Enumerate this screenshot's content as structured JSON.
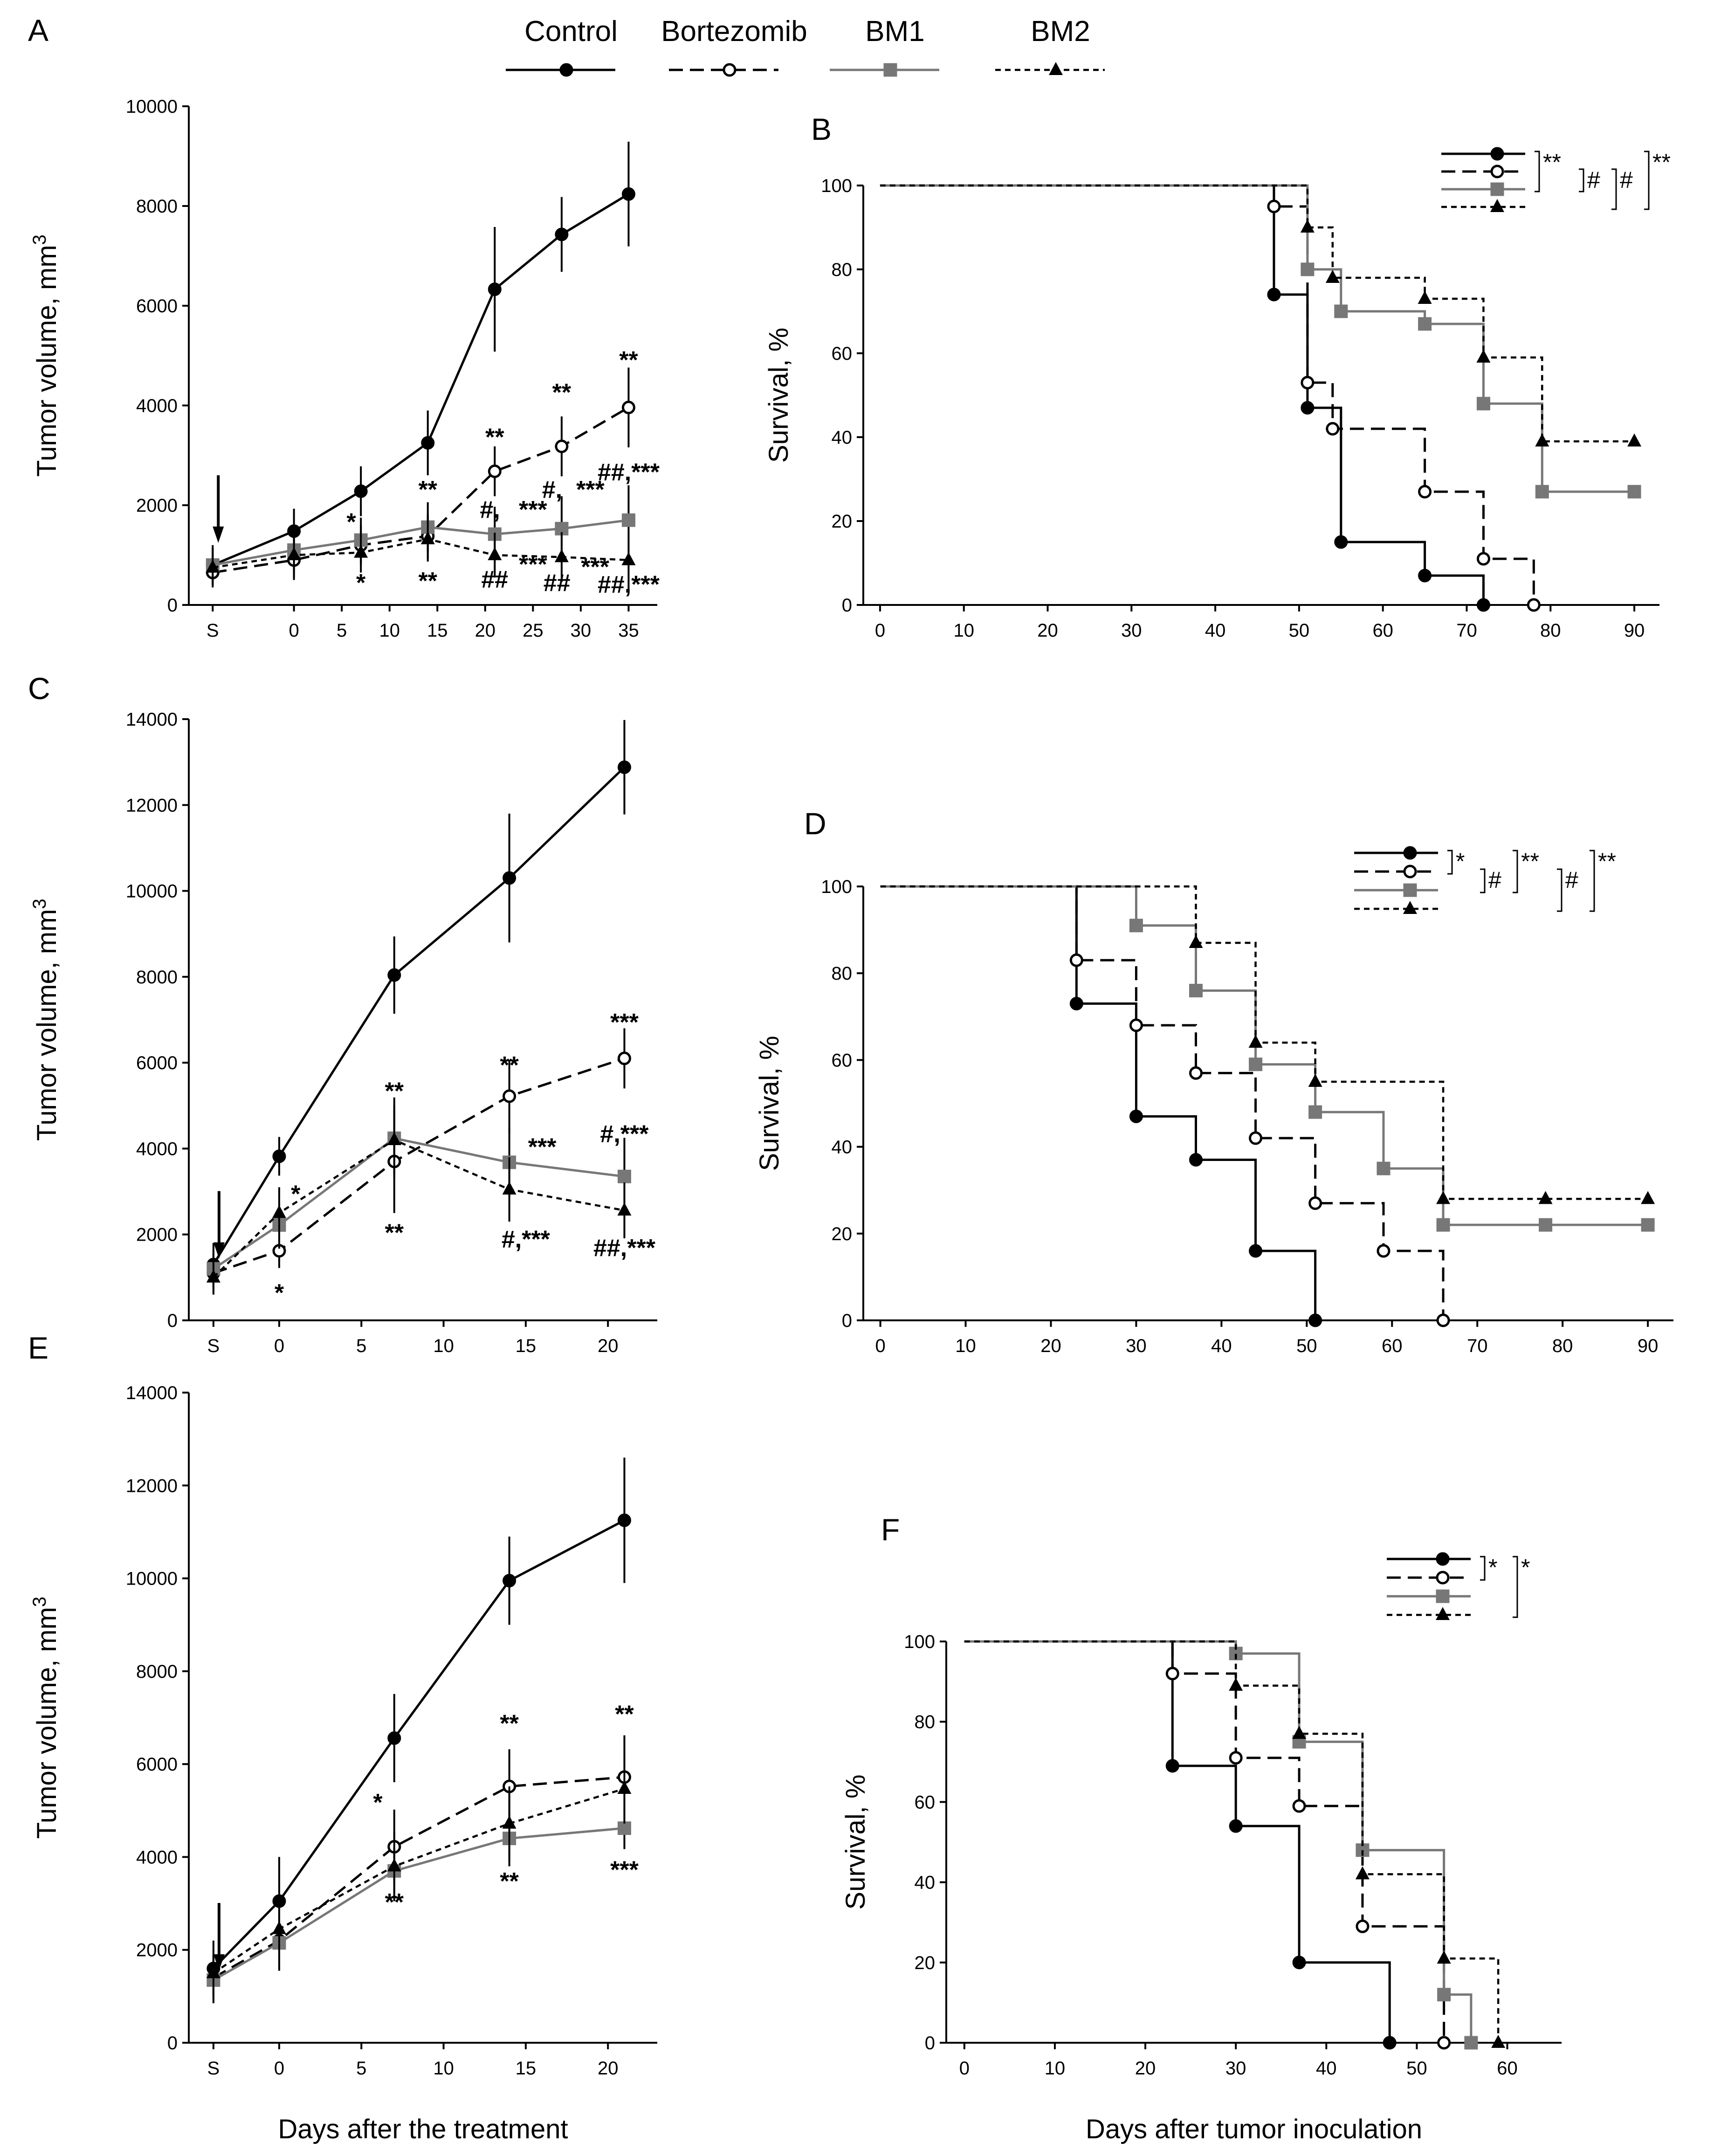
{
  "legend": {
    "items": [
      {
        "label": "Control",
        "style": "solid",
        "marker": "circle-filled",
        "color": "#000000"
      },
      {
        "label": "Bortezomib",
        "style": "longdash",
        "marker": "circle-open",
        "color": "#000000"
      },
      {
        "label": "BM1",
        "style": "solid",
        "marker": "square",
        "color": "#777777"
      },
      {
        "label": "BM2",
        "style": "shortdash",
        "marker": "triangle",
        "color": "#000000"
      }
    ]
  },
  "chart_data": [
    {
      "panel": "A",
      "type": "line",
      "ylabel": "Tumor volume, mm3",
      "xlabel": "",
      "ylim": [
        0,
        10000
      ],
      "yticks": [
        0,
        2000,
        4000,
        6000,
        8000,
        10000
      ],
      "xlim": [
        -11,
        38
      ],
      "xticks": [
        {
          "v": -8.5,
          "t": "S"
        },
        {
          "v": 0,
          "t": "0"
        },
        {
          "v": 5,
          "t": "5"
        },
        {
          "v": 10,
          "t": "10"
        },
        {
          "v": 15,
          "t": "15"
        },
        {
          "v": 20,
          "t": "20"
        },
        {
          "v": 25,
          "t": "25"
        },
        {
          "v": 30,
          "t": "30"
        },
        {
          "v": 35,
          "t": "35"
        }
      ],
      "treatment_arrow_x": -8.5,
      "series": [
        {
          "name": "Control",
          "x": [
            -8.5,
            0,
            7,
            14,
            21,
            28,
            35
          ],
          "values": [
            800,
            1480,
            2280,
            3250,
            6330,
            7430,
            8240
          ],
          "err": [
            400,
            450,
            500,
            650,
            1250,
            750,
            1050
          ]
        },
        {
          "name": "Bortezomib",
          "x": [
            -8.5,
            0,
            7,
            14,
            21,
            28,
            35
          ],
          "values": [
            650,
            900,
            1200,
            1380,
            2680,
            3180,
            3960
          ],
          "err": [
            300,
            400,
            400,
            450,
            500,
            600,
            800
          ]
        },
        {
          "name": "BM1",
          "x": [
            -8.5,
            0,
            7,
            14,
            21,
            28,
            35
          ],
          "values": [
            800,
            1100,
            1300,
            1560,
            1420,
            1530,
            1700
          ],
          "err": [
            350,
            450,
            450,
            500,
            550,
            650,
            700
          ]
        },
        {
          "name": "BM2",
          "x": [
            -8.5,
            0,
            7,
            14,
            21,
            28,
            35
          ],
          "values": [
            750,
            1000,
            1050,
            1320,
            1000,
            960,
            900
          ],
          "err": [
            350,
            450,
            400,
            450,
            450,
            500,
            600
          ]
        }
      ],
      "annotations": [
        {
          "x": 6,
          "y": 1500,
          "text": "*"
        },
        {
          "x": 7,
          "y": 280,
          "text": "*"
        },
        {
          "x": 14,
          "y": 2150,
          "text": "**"
        },
        {
          "x": 14,
          "y": 320,
          "text": "**"
        },
        {
          "x": 21,
          "y": 3200,
          "text": "**"
        },
        {
          "x": 20.5,
          "y": 1750,
          "text": "#,"
        },
        {
          "x": 25,
          "y": 1750,
          "text": "***"
        },
        {
          "x": 21,
          "y": 350,
          "text": "##"
        },
        {
          "x": 25,
          "y": 650,
          "text": "***"
        },
        {
          "x": 28,
          "y": 4100,
          "text": "**"
        },
        {
          "x": 27,
          "y": 2150,
          "text": "#,"
        },
        {
          "x": 31,
          "y": 2150,
          "text": "***"
        },
        {
          "x": 27.5,
          "y": 280,
          "text": "##"
        },
        {
          "x": 31.5,
          "y": 600,
          "text": "***"
        },
        {
          "x": 35,
          "y": 4750,
          "text": "**"
        },
        {
          "x": 35,
          "y": 2500,
          "text": "##,***"
        },
        {
          "x": 35,
          "y": 250,
          "text": "##,***"
        }
      ]
    },
    {
      "panel": "B",
      "type": "line",
      "ylabel": "Survival, %",
      "xlabel": "",
      "ylim": [
        0,
        100
      ],
      "yticks": [
        0,
        20,
        40,
        60,
        80,
        100
      ],
      "xlim": [
        -2,
        93
      ],
      "xticks": [
        0,
        10,
        20,
        30,
        40,
        50,
        60,
        70,
        80,
        90
      ],
      "series": [
        {
          "name": "Control",
          "x": [
            0,
            47,
            51,
            55,
            65,
            72
          ],
          "values": [
            100,
            74,
            47,
            15,
            7,
            0
          ]
        },
        {
          "name": "Bortezomib",
          "x": [
            0,
            47,
            51,
            54,
            65,
            72,
            78
          ],
          "values": [
            100,
            95,
            53,
            42,
            27,
            11,
            0
          ]
        },
        {
          "name": "BM1",
          "x": [
            0,
            51,
            55,
            65,
            72,
            79,
            90
          ],
          "values": [
            100,
            80,
            70,
            67,
            48,
            27,
            27
          ]
        },
        {
          "name": "BM2",
          "x": [
            0,
            51,
            54,
            65,
            72,
            79,
            90
          ],
          "values": [
            100,
            90,
            78,
            73,
            59,
            39,
            39
          ]
        }
      ],
      "significance": [
        {
          "from": 0,
          "to": 2,
          "text": "**"
        },
        {
          "from": 1,
          "to": 2,
          "text": "#"
        },
        {
          "from": 1,
          "to": 3,
          "text": "#"
        },
        {
          "from": 0,
          "to": 3,
          "text": "**"
        }
      ]
    },
    {
      "panel": "C",
      "type": "line",
      "ylabel": "Tumor volume, mm3",
      "xlabel": "",
      "ylim": [
        0,
        14000
      ],
      "yticks": [
        0,
        2000,
        4000,
        6000,
        8000,
        10000,
        12000,
        14000
      ],
      "xlim": [
        -5.5,
        23
      ],
      "xticks": [
        {
          "v": -4,
          "t": "S"
        },
        {
          "v": 0,
          "t": "0"
        },
        {
          "v": 5,
          "t": "5"
        },
        {
          "v": 10,
          "t": "10"
        },
        {
          "v": 15,
          "t": "15"
        },
        {
          "v": 20,
          "t": "20"
        }
      ],
      "treatment_arrow_x": -4,
      "series": [
        {
          "name": "Control",
          "x": [
            -4,
            0,
            7,
            14,
            21
          ],
          "values": [
            1300,
            3820,
            8040,
            10300,
            12880
          ],
          "err": [
            500,
            450,
            900,
            1500,
            1100
          ]
        },
        {
          "name": "Bortezomib",
          "x": [
            -4,
            0,
            7,
            14,
            21
          ],
          "values": [
            1100,
            1620,
            3700,
            5220,
            6100
          ],
          "err": [
            450,
            400,
            1200,
            850,
            700
          ]
        },
        {
          "name": "BM1",
          "x": [
            -4,
            0,
            7,
            14,
            21
          ],
          "values": [
            1200,
            2220,
            4240,
            3680,
            3350
          ],
          "err": [
            450,
            550,
            950,
            800,
            900
          ]
        },
        {
          "name": "BM2",
          "x": [
            -4,
            0,
            7,
            14,
            21
          ],
          "values": [
            1000,
            2500,
            4200,
            3050,
            2560
          ],
          "err": [
            400,
            600,
            800,
            750,
            650
          ]
        }
      ],
      "annotations": [
        {
          "x": 1,
          "y": 2750,
          "text": "*"
        },
        {
          "x": 0,
          "y": 450,
          "text": "*"
        },
        {
          "x": 7,
          "y": 5150,
          "text": "**"
        },
        {
          "x": 7,
          "y": 1850,
          "text": "**"
        },
        {
          "x": 14,
          "y": 5750,
          "text": "**"
        },
        {
          "x": 16,
          "y": 3850,
          "text": "***"
        },
        {
          "x": 15,
          "y": 1700,
          "text": "#,***"
        },
        {
          "x": 21,
          "y": 6750,
          "text": "***"
        },
        {
          "x": 21,
          "y": 4150,
          "text": "#,***"
        },
        {
          "x": 21,
          "y": 1500,
          "text": "##,***"
        }
      ]
    },
    {
      "panel": "D",
      "type": "line",
      "ylabel": "Survival, %",
      "xlabel": "",
      "ylim": [
        0,
        100
      ],
      "yticks": [
        0,
        20,
        40,
        60,
        80,
        100
      ],
      "xlim": [
        -2,
        93
      ],
      "xticks": [
        0,
        10,
        20,
        30,
        40,
        50,
        60,
        70,
        80,
        90
      ],
      "series": [
        {
          "name": "Control",
          "x": [
            0,
            23,
            30,
            37,
            44,
            51
          ],
          "values": [
            100,
            73,
            47,
            37,
            16,
            0
          ]
        },
        {
          "name": "Bortezomib",
          "x": [
            0,
            23,
            30,
            37,
            44,
            51,
            59,
            66
          ],
          "values": [
            100,
            83,
            68,
            57,
            42,
            27,
            16,
            0
          ]
        },
        {
          "name": "BM1",
          "x": [
            0,
            30,
            37,
            44,
            51,
            59,
            66,
            78,
            90
          ],
          "values": [
            100,
            91,
            76,
            59,
            48,
            35,
            22,
            22,
            22
          ]
        },
        {
          "name": "BM2",
          "x": [
            0,
            37,
            44,
            51,
            66,
            78,
            90
          ],
          "values": [
            100,
            87,
            64,
            55,
            28,
            28,
            28
          ]
        }
      ],
      "significance": [
        {
          "from": 0,
          "to": 1,
          "text": "*"
        },
        {
          "from": 1,
          "to": 2,
          "text": "#"
        },
        {
          "from": 0,
          "to": 2,
          "text": "**"
        },
        {
          "from": 1,
          "to": 3,
          "text": "#"
        },
        {
          "from": 0,
          "to": 3,
          "text": "**"
        }
      ]
    },
    {
      "panel": "E",
      "type": "line",
      "ylabel": "Tumor volume, mm3",
      "xlabel": "Days after the treatment",
      "ylim": [
        0,
        14000
      ],
      "yticks": [
        0,
        2000,
        4000,
        6000,
        8000,
        10000,
        12000,
        14000
      ],
      "xlim": [
        -5.5,
        23
      ],
      "xticks": [
        {
          "v": -4,
          "t": "S"
        },
        {
          "v": 0,
          "t": "0"
        },
        {
          "v": 5,
          "t": "5"
        },
        {
          "v": 10,
          "t": "10"
        },
        {
          "v": 15,
          "t": "15"
        },
        {
          "v": 20,
          "t": "20"
        }
      ],
      "treatment_arrow_x": -4,
      "series": [
        {
          "name": "Control",
          "x": [
            -4,
            0,
            7,
            14,
            21
          ],
          "values": [
            1600,
            3050,
            6560,
            9950,
            11250
          ],
          "err": [
            600,
            950,
            950,
            950,
            1350
          ]
        },
        {
          "name": "Bortezomib",
          "x": [
            -4,
            0,
            7,
            14,
            21
          ],
          "values": [
            1400,
            2200,
            4220,
            5520,
            5720
          ],
          "err": [
            500,
            650,
            800,
            800,
            900
          ]
        },
        {
          "name": "BM1",
          "x": [
            -4,
            0,
            7,
            14,
            21
          ],
          "values": [
            1350,
            2150,
            3700,
            4400,
            4620
          ],
          "err": [
            500,
            600,
            500,
            600,
            450
          ]
        },
        {
          "name": "BM2",
          "x": [
            -4,
            0,
            7,
            14,
            21
          ],
          "values": [
            1500,
            2450,
            3800,
            4720,
            5470
          ],
          "err": [
            500,
            600,
            750,
            800,
            750
          ]
        }
      ],
      "annotations": [
        {
          "x": 6,
          "y": 5000,
          "text": "*"
        },
        {
          "x": 7,
          "y": 2850,
          "text": "**"
        },
        {
          "x": 14,
          "y": 6700,
          "text": "**"
        },
        {
          "x": 14,
          "y": 3300,
          "text": "**"
        },
        {
          "x": 21,
          "y": 6900,
          "text": "**"
        },
        {
          "x": 21,
          "y": 3550,
          "text": "***"
        }
      ]
    },
    {
      "panel": "F",
      "type": "line",
      "ylabel": "Survival, %",
      "xlabel": "Days after tumor inoculation",
      "ylim": [
        0,
        100
      ],
      "yticks": [
        0,
        20,
        40,
        60,
        80,
        100
      ],
      "xlim": [
        -2,
        66
      ],
      "xticks": [
        0,
        10,
        20,
        30,
        40,
        50,
        60
      ],
      "series": [
        {
          "name": "Control",
          "x": [
            0,
            23,
            30,
            37,
            47
          ],
          "values": [
            100,
            69,
            54,
            20,
            0
          ]
        },
        {
          "name": "Bortezomib",
          "x": [
            0,
            23,
            30,
            37,
            44,
            53
          ],
          "values": [
            100,
            92,
            71,
            59,
            29,
            0
          ]
        },
        {
          "name": "BM1",
          "x": [
            0,
            30,
            37,
            44,
            53,
            56
          ],
          "values": [
            100,
            97,
            75,
            48,
            12,
            0
          ]
        },
        {
          "name": "BM2",
          "x": [
            0,
            30,
            37,
            44,
            53,
            59
          ],
          "values": [
            100,
            89,
            77,
            42,
            21,
            0
          ]
        }
      ],
      "significance": [
        {
          "from": 0,
          "to": 1,
          "text": "*"
        },
        {
          "from": 0,
          "to": 3,
          "text": "*"
        }
      ]
    }
  ]
}
